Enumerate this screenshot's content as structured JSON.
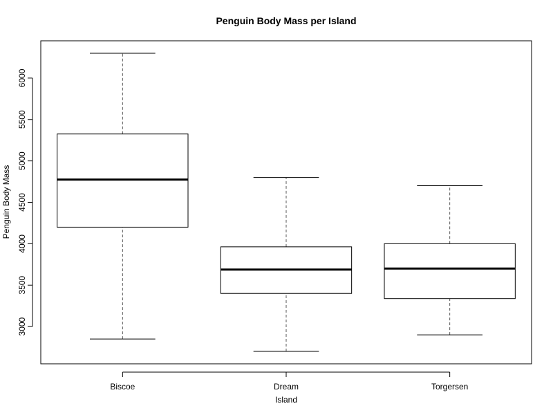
{
  "chart_data": {
    "type": "boxplot",
    "title": "Penguin Body Mass per Island",
    "xlabel": "Island",
    "ylabel": "Penguin Body Mass",
    "ylim": [
      2550,
      6450
    ],
    "yticks": [
      3000,
      3500,
      4000,
      4500,
      5000,
      5500,
      6000
    ],
    "grid": false,
    "categories": [
      "Biscoe",
      "Dream",
      "Torgersen"
    ],
    "boxes": [
      {
        "category": "Biscoe",
        "min": 2850,
        "q1": 4200,
        "median": 4775,
        "q3": 5325,
        "max": 6300
      },
      {
        "category": "Dream",
        "min": 2700,
        "q1": 3400,
        "median": 3687.5,
        "q3": 3962.5,
        "max": 4800
      },
      {
        "category": "Torgersen",
        "min": 2900,
        "q1": 3337.5,
        "median": 3700,
        "q3": 4000,
        "max": 4700
      }
    ],
    "colors": {
      "box_fill": "#ffffff",
      "stroke": "#000000",
      "whisker": "#555555"
    }
  }
}
